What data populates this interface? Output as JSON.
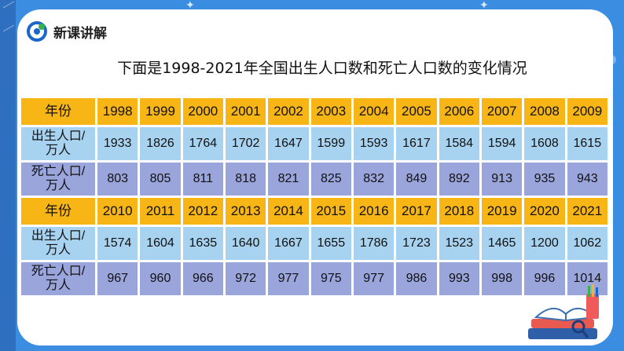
{
  "header": {
    "section_title": "新课讲解"
  },
  "title": "下面是1998-2021年全国出生人口数和死亡人口数的变化情况",
  "table": {
    "blocks": [
      {
        "year_label": "年份",
        "years": [
          "1998",
          "1999",
          "2000",
          "2001",
          "2002",
          "2003",
          "2004",
          "2005",
          "2006",
          "2007",
          "2008",
          "2009"
        ],
        "birth_label_line1": "出生人口/",
        "birth_label_line2": "万人",
        "births": [
          "1933",
          "1826",
          "1764",
          "1702",
          "1647",
          "1599",
          "1593",
          "1617",
          "1584",
          "1594",
          "1608",
          "1615"
        ],
        "death_label_line1": "死亡人口/",
        "death_label_line2": "万人",
        "deaths": [
          "803",
          "805",
          "811",
          "818",
          "821",
          "825",
          "832",
          "849",
          "892",
          "913",
          "935",
          "943"
        ]
      },
      {
        "year_label": "年份",
        "years": [
          "2010",
          "2011",
          "2012",
          "2013",
          "2014",
          "2015",
          "2016",
          "2017",
          "2018",
          "2019",
          "2020",
          "2021"
        ],
        "birth_label_line1": "出生人口/",
        "birth_label_line2": "万人",
        "births": [
          "1574",
          "1604",
          "1635",
          "1640",
          "1667",
          "1655",
          "1786",
          "1723",
          "1523",
          "1465",
          "1200",
          "1062"
        ],
        "death_label_line1": "死亡人口/",
        "death_label_line2": "万人",
        "deaths": [
          "967",
          "960",
          "966",
          "972",
          "977",
          "975",
          "977",
          "986",
          "993",
          "998",
          "996",
          "1014"
        ]
      }
    ]
  },
  "colors": {
    "background": "#3a8de0",
    "year_row": "#f7b615",
    "birth_row": "#a8d3f0",
    "death_row": "#9aa5dc"
  }
}
